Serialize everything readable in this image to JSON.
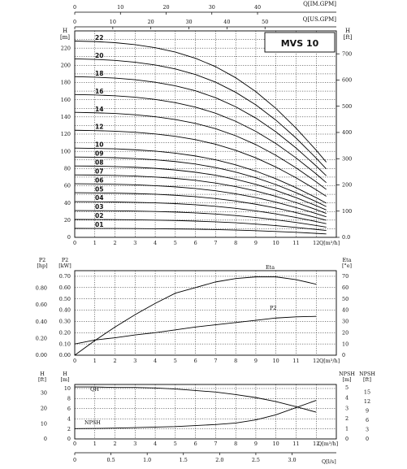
{
  "colors": {
    "line": "#000000",
    "grid": "#000000",
    "box": "#000000"
  },
  "top_axes": {
    "imgpm": {
      "label": "Q[IM.GPM]",
      "ticks": [
        "0",
        "10",
        "20",
        "30",
        "40"
      ]
    },
    "usgpm": {
      "label": "Q[US.GPM]",
      "ticks": [
        "0",
        "10",
        "20",
        "30",
        "40",
        "50"
      ]
    }
  },
  "head_panel": {
    "left_unit": [
      "H",
      "[m]"
    ],
    "right_unit": [
      "H",
      "[ft]"
    ],
    "model": "MVS 10",
    "xlabel": "Q[m³/h]",
    "left_ticks": [
      "0",
      "20",
      "40",
      "60",
      "80",
      "100",
      "120",
      "140",
      "160",
      "180",
      "200",
      "220"
    ],
    "right_ticks": [
      "0.0",
      "100",
      "200",
      "300",
      "400",
      "500",
      "600",
      "700"
    ],
    "x_ticks": [
      "0",
      "1",
      "2",
      "3",
      "4",
      "5",
      "6",
      "7",
      "8",
      "9",
      "10",
      "11",
      "12"
    ]
  },
  "power_panel": {
    "hp_unit": [
      "P2",
      "[hp]"
    ],
    "kw_unit": [
      "P2",
      "[kW]"
    ],
    "eta_unit": [
      "Eta",
      "[°e]"
    ],
    "hp_ticks": [
      "0.00",
      "0.20",
      "0.40",
      "0.60",
      "0.80"
    ],
    "kw_ticks": [
      "0.00",
      "0.10",
      "0.20",
      "0.30",
      "0.40",
      "0.50",
      "0.60",
      "0.70"
    ],
    "eta_ticks": [
      "0",
      "10",
      "20",
      "30",
      "40",
      "50",
      "60",
      "70"
    ],
    "x_ticks": [
      "0",
      "1",
      "2",
      "3",
      "4",
      "5",
      "6",
      "7",
      "8",
      "9",
      "10",
      "11",
      "12"
    ],
    "xlabel": "Q[m³/h]",
    "eta_label": "Eta",
    "p2_label": "P2"
  },
  "npsh_panel": {
    "h_ft_unit": [
      "H",
      "[ft]"
    ],
    "h_m_unit": [
      "H",
      "[m]"
    ],
    "npsh_m_unit": [
      "NPSH",
      "[m]"
    ],
    "npsh_ft_unit": [
      "NPSH",
      "[ft]"
    ],
    "h_ft_ticks": [
      "0",
      "10",
      "20",
      "30"
    ],
    "h_m_ticks": [
      "0",
      "2",
      "4",
      "6",
      "8",
      "10"
    ],
    "npsh_m_ticks": [
      "0",
      "1",
      "2",
      "3",
      "4",
      "5"
    ],
    "npsh_ft_ticks": [
      "0",
      "3",
      "6",
      "9",
      "12",
      "15"
    ],
    "x_ticks": [
      "0",
      "1",
      "2",
      "3",
      "4",
      "5",
      "6",
      "7",
      "8",
      "9",
      "10",
      "11",
      "12"
    ],
    "xlabel": "Q[m³/h]",
    "qh_label": "QH",
    "npsh_label": "NPSH",
    "ls_ticks": [
      "0",
      "0.5",
      "1.0",
      "1.5",
      "2.0",
      "2.5",
      "3.0"
    ],
    "ls_label": "Q[l/s]"
  },
  "chart_data": [
    {
      "type": "line",
      "title": "MVS 10",
      "xlabel": "Q[m³/h]",
      "ylabel": "H [m]",
      "xlim": [
        0,
        13
      ],
      "ylim": [
        0,
        240
      ],
      "x": [
        0,
        1,
        2,
        3,
        4,
        5,
        6,
        7,
        8,
        9,
        10,
        11,
        12,
        12.5
      ],
      "series": [
        {
          "name": "22",
          "values": [
            228.2,
            227.6,
            226.3,
            224.0,
            220.4,
            215.4,
            208.2,
            198.4,
            185.5,
            169.4,
            149.8,
            126.9,
            101.3,
            87.5
          ]
        },
        {
          "name": "20",
          "values": [
            207.5,
            206.9,
            205.7,
            203.6,
            200.4,
            195.8,
            189.3,
            180.4,
            168.6,
            154.0,
            136.2,
            115.4,
            92.1,
            79.5
          ]
        },
        {
          "name": "18",
          "values": [
            186.8,
            186.2,
            185.1,
            183.2,
            180.3,
            176.2,
            170.4,
            162.3,
            151.8,
            138.6,
            122.6,
            103.8,
            82.9,
            71.6
          ]
        },
        {
          "name": "16",
          "values": [
            166.0,
            165.5,
            164.6,
            162.9,
            160.3,
            156.6,
            151.4,
            144.3,
            134.9,
            123.2,
            109.0,
            92.3,
            73.7,
            63.6
          ]
        },
        {
          "name": "14",
          "values": [
            145.3,
            144.8,
            144.0,
            142.5,
            140.3,
            137.0,
            132.5,
            126.3,
            118.1,
            107.8,
            95.3,
            80.8,
            64.5,
            55.7
          ]
        },
        {
          "name": "12",
          "values": [
            124.5,
            124.1,
            123.4,
            122.2,
            120.2,
            117.5,
            113.6,
            108.2,
            101.2,
            92.4,
            81.7,
            69.2,
            55.3,
            47.7
          ]
        },
        {
          "name": "10",
          "values": [
            103.8,
            103.4,
            102.9,
            101.8,
            100.2,
            97.9,
            94.6,
            90.2,
            84.3,
            77.0,
            68.1,
            57.7,
            46.1,
            39.8
          ]
        },
        {
          "name": "09",
          "values": [
            93.4,
            93.1,
            92.6,
            91.6,
            90.2,
            88.1,
            85.2,
            81.2,
            75.9,
            69.3,
            61.3,
            51.9,
            41.5,
            35.8
          ]
        },
        {
          "name": "08",
          "values": [
            83.0,
            82.8,
            82.3,
            81.5,
            80.2,
            78.3,
            75.7,
            72.2,
            67.5,
            61.6,
            54.5,
            46.1,
            36.8,
            31.8
          ]
        },
        {
          "name": "07",
          "values": [
            72.6,
            72.4,
            72.0,
            71.3,
            70.1,
            68.5,
            66.3,
            63.1,
            59.0,
            53.9,
            47.7,
            40.4,
            32.2,
            27.8
          ]
        },
        {
          "name": "06",
          "values": [
            62.3,
            62.1,
            61.7,
            61.1,
            60.1,
            58.7,
            56.8,
            54.1,
            50.6,
            46.2,
            40.9,
            34.6,
            27.6,
            23.9
          ]
        },
        {
          "name": "05",
          "values": [
            51.9,
            51.7,
            51.4,
            50.9,
            50.1,
            48.9,
            47.3,
            45.1,
            42.2,
            38.5,
            34.1,
            28.8,
            23.0,
            19.9
          ]
        },
        {
          "name": "04",
          "values": [
            41.5,
            41.4,
            41.1,
            40.7,
            40.1,
            39.2,
            37.9,
            36.1,
            33.7,
            30.8,
            27.2,
            23.1,
            18.4,
            15.9
          ]
        },
        {
          "name": "03",
          "values": [
            31.1,
            31.0,
            30.9,
            30.5,
            30.1,
            29.4,
            28.4,
            27.1,
            25.3,
            23.1,
            20.4,
            17.3,
            13.8,
            11.9
          ]
        },
        {
          "name": "02",
          "values": [
            20.8,
            20.7,
            20.6,
            20.4,
            20.0,
            19.6,
            18.9,
            18.0,
            16.9,
            15.4,
            13.6,
            11.5,
            9.2,
            8.0
          ]
        },
        {
          "name": "01",
          "values": [
            10.4,
            10.3,
            10.3,
            10.2,
            10.0,
            9.8,
            9.5,
            9.0,
            8.4,
            7.7,
            6.8,
            5.8,
            4.6,
            4.0
          ]
        }
      ]
    },
    {
      "type": "line",
      "xlabel": "Q[m³/h]",
      "ylabel": "P2 [kW]",
      "xlim": [
        0,
        13
      ],
      "ylim": [
        0,
        0.7
      ],
      "series": [
        {
          "name": "Eta",
          "axis": "Eta [%]",
          "x": [
            0,
            1,
            2,
            3,
            4,
            5,
            6,
            7,
            8,
            9,
            10,
            11,
            12
          ],
          "values": [
            0,
            13,
            25,
            36,
            46,
            55,
            60,
            65,
            68,
            69.5,
            69.5,
            67,
            63
          ]
        },
        {
          "name": "P2",
          "axis": "P2 [kW]",
          "x": [
            0,
            1,
            2,
            3,
            4,
            5,
            6,
            7,
            8,
            9,
            10,
            11,
            12
          ],
          "values": [
            0.1,
            0.135,
            0.155,
            0.18,
            0.2,
            0.225,
            0.25,
            0.27,
            0.29,
            0.31,
            0.33,
            0.34,
            0.345
          ]
        }
      ]
    },
    {
      "type": "line",
      "xlabel": "Q[m³/h]",
      "ylabel": "H [m]",
      "xlim": [
        0,
        13
      ],
      "ylim": [
        0,
        10.5
      ],
      "series": [
        {
          "name": "QH",
          "axis": "H [m]",
          "x": [
            0,
            1,
            2,
            3,
            4,
            5,
            6,
            7,
            8,
            9,
            10,
            11,
            12
          ],
          "values": [
            10.3,
            10.3,
            10.2,
            10.2,
            10.1,
            9.9,
            9.6,
            9.3,
            8.8,
            8.2,
            7.4,
            6.4,
            5.3
          ]
        },
        {
          "name": "NPSH",
          "axis": "NPSH [m]",
          "x": [
            0,
            1,
            2,
            3,
            4,
            5,
            6,
            7,
            8,
            9,
            10,
            11,
            12
          ],
          "values": [
            1.0,
            1.02,
            1.05,
            1.1,
            1.15,
            1.2,
            1.3,
            1.4,
            1.55,
            1.85,
            2.35,
            3.05,
            3.75
          ]
        }
      ]
    }
  ]
}
